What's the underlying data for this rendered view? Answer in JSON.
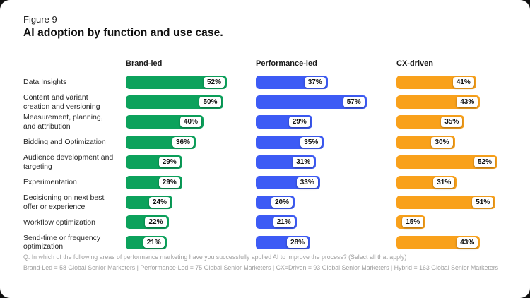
{
  "figure": {
    "label": "Figure 9",
    "title": "AI adoption by function and use case."
  },
  "colors": {
    "brand_led": "#0ca25c",
    "performance_led": "#3d5bf5",
    "cx_driven": "#f9a11b",
    "card_bg": "#ffffff",
    "page_bg": "#101010",
    "footnote_text": "#9f9f9f"
  },
  "chart_data": {
    "type": "bar",
    "orientation": "horizontal",
    "title": "AI adoption by function and use case.",
    "value_suffix": "%",
    "xlim": [
      0,
      62
    ],
    "grid": false,
    "legend_position": "column-headers",
    "categories": [
      "Data Insights",
      "Content and variant creation and versioning",
      "Measurement, planning, and attribution",
      "Bidding and Optimization",
      "Audience development and targeting",
      "Experimentation",
      "Decisioning on next best offer or experience",
      "Workflow optimization",
      "Send-time or frequency optimization"
    ],
    "series": [
      {
        "name": "Brand-led",
        "color_key": "brand_led",
        "values": [
          52,
          50,
          40,
          36,
          29,
          29,
          24,
          22,
          21
        ]
      },
      {
        "name": "Performance-led",
        "color_key": "performance_led",
        "values": [
          37,
          57,
          29,
          35,
          31,
          33,
          20,
          21,
          28
        ]
      },
      {
        "name": "CX-driven",
        "color_key": "cx_driven",
        "values": [
          41,
          43,
          35,
          30,
          52,
          31,
          51,
          15,
          43
        ]
      }
    ]
  },
  "footnote": {
    "question": "Q. In which of the following areas of performance marketing have you successfully applied AI to improve the process? (Select all that apply)",
    "sample": "Brand-Led = 58 Global Senior Marketers | Performance-Led = 75 Global Senior Marketers | CX=Driven = 93 Global Senior Marketers | Hybrid = 163 Global Senior Marketers"
  }
}
